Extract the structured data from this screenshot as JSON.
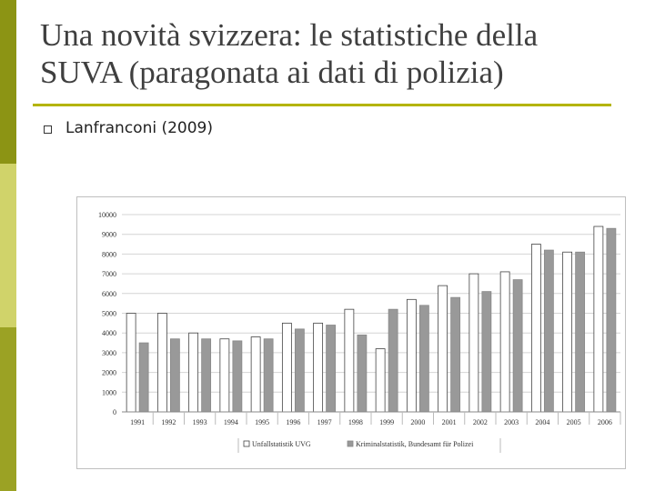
{
  "slide": {
    "title_line1": "Una novità svizzera: le statistiche della",
    "title_line2": "SUVA (paragonata ai dati di polizia)",
    "bullet": "Lanfranconi (2009)",
    "accent_color": "#b4b400",
    "sidebar_colors": [
      "#8c9414",
      "#d0d36a",
      "#9ba224"
    ]
  },
  "chart_data": {
    "type": "bar",
    "categories": [
      "1991",
      "1992",
      "1993",
      "1994",
      "1995",
      "1996",
      "1997",
      "1998",
      "1999",
      "2000",
      "2001",
      "2002",
      "2003",
      "2004",
      "2005",
      "2006"
    ],
    "series": [
      {
        "name": "Unfallstatistik UVG",
        "color": "#ffffff",
        "values": [
          5000,
          5000,
          4000,
          3700,
          3800,
          4500,
          4500,
          5200,
          3200,
          5700,
          6400,
          7000,
          7100,
          8500,
          8100,
          9400
        ]
      },
      {
        "name": "Kriminalstatistik, Bundesamt für Polizei",
        "color": "#999999",
        "values": [
          3500,
          3700,
          3700,
          3600,
          3700,
          4200,
          4400,
          3900,
          5200,
          5400,
          5800,
          6100,
          6700,
          8200,
          8100,
          9300
        ]
      }
    ],
    "y_ticks": [
      "0",
      "1000",
      "2000",
      "3000",
      "4000",
      "5000",
      "6000",
      "7000",
      "8000",
      "9000",
      "10000"
    ],
    "ylim": [
      0,
      10000
    ],
    "grid": true,
    "legend_position": "bottom"
  }
}
